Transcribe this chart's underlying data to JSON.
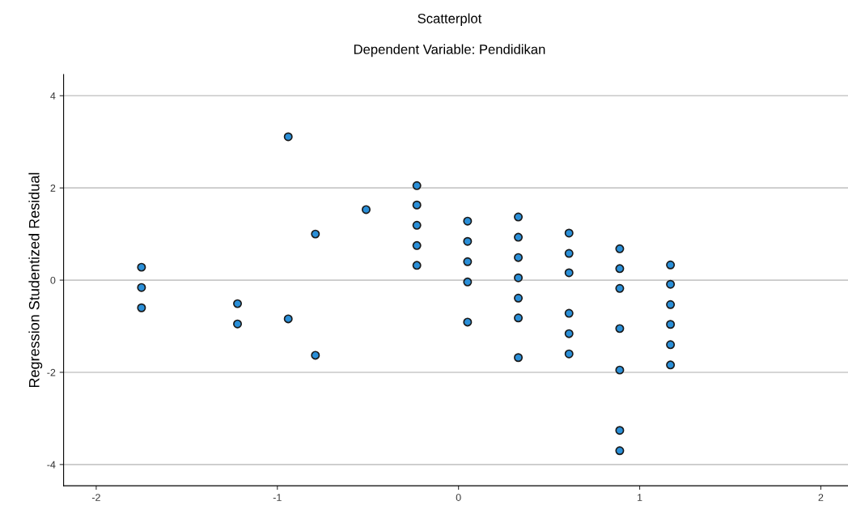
{
  "chart_data": {
    "type": "scatter",
    "title": "Scatterplot",
    "subtitle": "Dependent Variable: Pendidikan",
    "ylabel": "Regression Studentized Residual",
    "x": [
      -1.75,
      -1.75,
      -1.75,
      -1.22,
      -1.22,
      -0.94,
      -0.94,
      -0.79,
      -0.79,
      -0.51,
      -0.23,
      -0.23,
      -0.23,
      -0.23,
      -0.23,
      0.05,
      0.05,
      0.05,
      0.05,
      0.05,
      0.33,
      0.33,
      0.33,
      0.33,
      0.33,
      0.33,
      0.33,
      0.61,
      0.61,
      0.61,
      0.61,
      0.61,
      0.61,
      0.89,
      0.89,
      0.89,
      0.89,
      0.89,
      0.89,
      0.89,
      1.17,
      1.17,
      1.17,
      1.17,
      1.17,
      1.17
    ],
    "series": [
      {
        "color": "#2a8fd8",
        "values": [
          0.28,
          -0.16,
          -0.6,
          -0.51,
          -0.95,
          3.11,
          -0.84,
          1.0,
          -1.63,
          1.53,
          2.05,
          1.63,
          1.19,
          0.75,
          0.32,
          1.28,
          0.84,
          0.4,
          -0.04,
          -0.91,
          1.37,
          0.93,
          0.49,
          0.05,
          -0.39,
          -0.82,
          -1.68,
          1.02,
          0.58,
          0.16,
          -0.72,
          -1.16,
          -1.6,
          0.68,
          0.25,
          -0.18,
          -1.05,
          -1.95,
          -3.26,
          -3.7,
          0.33,
          -0.09,
          -0.53,
          -0.96,
          -1.4,
          -1.84
        ]
      }
    ],
    "xlim": [
      -2.18,
      2.15
    ],
    "ylim": [
      -4.46,
      4.46
    ],
    "xticks": [
      -2,
      -1,
      0,
      1,
      2
    ],
    "yticks": [
      -4,
      -2,
      0,
      2,
      4
    ],
    "grid": "y",
    "marker": "circle",
    "legend": false
  }
}
